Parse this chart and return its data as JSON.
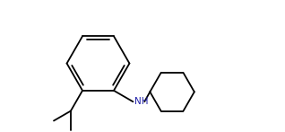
{
  "background_color": "#ffffff",
  "line_color": "#000000",
  "nh_color": "#2222aa",
  "lw": 1.3,
  "fig_w": 3.18,
  "fig_h": 1.47,
  "dpi": 100,
  "xlim": [
    0,
    10
  ],
  "ylim": [
    0,
    5
  ]
}
